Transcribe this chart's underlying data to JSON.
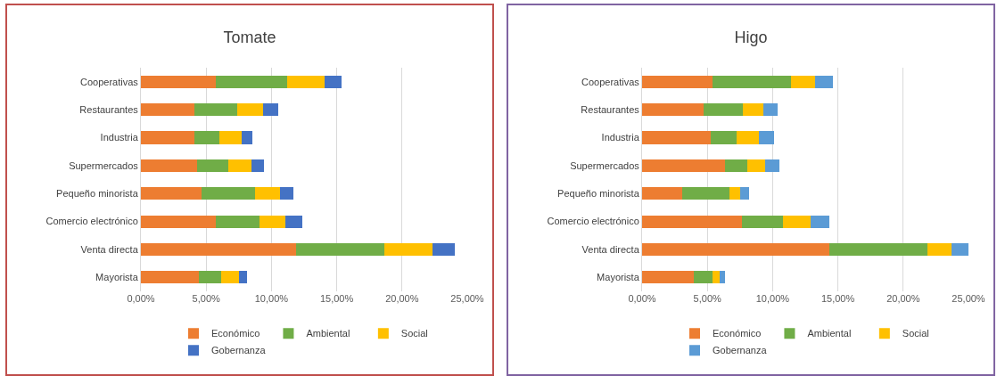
{
  "chart_data": [
    {
      "type": "bar",
      "title": "Tomate",
      "orientation": "horizontal",
      "stacked": true,
      "grid": "x",
      "legend": "bottom",
      "categories": [
        "Cooperativas",
        "Restaurantes",
        "Industria",
        "Supermercados",
        "Pequeño minorista",
        "Comercio electrónico",
        "Venta directa",
        "Mayorista"
      ],
      "xlim": [
        0,
        25
      ],
      "xticks": [
        {
          "value": 0,
          "label": "0,00%"
        },
        {
          "value": 5,
          "label": "5,00%"
        },
        {
          "value": 10,
          "label": "10,00%"
        },
        {
          "value": 15,
          "label": "15,00%"
        },
        {
          "value": 20,
          "label": "20,00%"
        },
        {
          "value": 25,
          "label": "25,00%"
        }
      ],
      "series": [
        {
          "name": "Económico",
          "color": "#ed7d31",
          "values": [
            5.76,
            4.08,
            4.13,
            4.28,
            4.64,
            5.76,
            11.88,
            4.46
          ]
        },
        {
          "name": "Ambiental",
          "color": "#70ad47",
          "values": [
            5.45,
            3.27,
            1.86,
            2.44,
            4.13,
            3.32,
            6.75,
            1.66
          ]
        },
        {
          "name": "Social",
          "color": "#ffc000",
          "values": [
            2.87,
            2.02,
            1.73,
            1.75,
            1.88,
            1.97,
            3.72,
            1.37
          ]
        },
        {
          "name": "Gobernanza",
          "color": "#4472c4",
          "values": [
            1.26,
            1.12,
            0.83,
            0.99,
            1.01,
            1.28,
            1.68,
            0.61
          ]
        }
      ]
    },
    {
      "type": "bar",
      "title": "Higo",
      "orientation": "horizontal",
      "stacked": true,
      "grid": "x",
      "legend": "bottom",
      "categories": [
        "Cooperativas",
        "Restaurantes",
        "Industria",
        "Supermercados",
        "Pequeño minorista",
        "Comercio electrónico",
        "Venta directa",
        "Mayorista"
      ],
      "xlim": [
        0,
        25
      ],
      "xticks": [
        {
          "value": 0,
          "label": "0,00%"
        },
        {
          "value": 5,
          "label": "5,00%"
        },
        {
          "value": 10,
          "label": "10,00%"
        },
        {
          "value": 15,
          "label": "15,00%"
        },
        {
          "value": 20,
          "label": "20,00%"
        },
        {
          "value": 25,
          "label": "25,00%"
        }
      ],
      "series": [
        {
          "name": "Económico",
          "color": "#ed7d31",
          "values": [
            5.41,
            4.69,
            5.29,
            6.34,
            3.1,
            7.67,
            14.36,
            3.96
          ]
        },
        {
          "name": "Ambiental",
          "color": "#70ad47",
          "values": [
            6.01,
            3.01,
            1.93,
            1.72,
            3.57,
            3.15,
            7.53,
            1.42
          ]
        },
        {
          "name": "Social",
          "color": "#ffc000",
          "values": [
            1.82,
            1.56,
            1.7,
            1.4,
            0.82,
            2.07,
            1.79,
            0.54
          ]
        },
        {
          "name": "Gobernanza",
          "color": "#5b9bd5",
          "values": [
            1.4,
            1.12,
            1.17,
            1.03,
            0.7,
            1.45,
            1.33,
            0.44
          ]
        }
      ]
    }
  ]
}
